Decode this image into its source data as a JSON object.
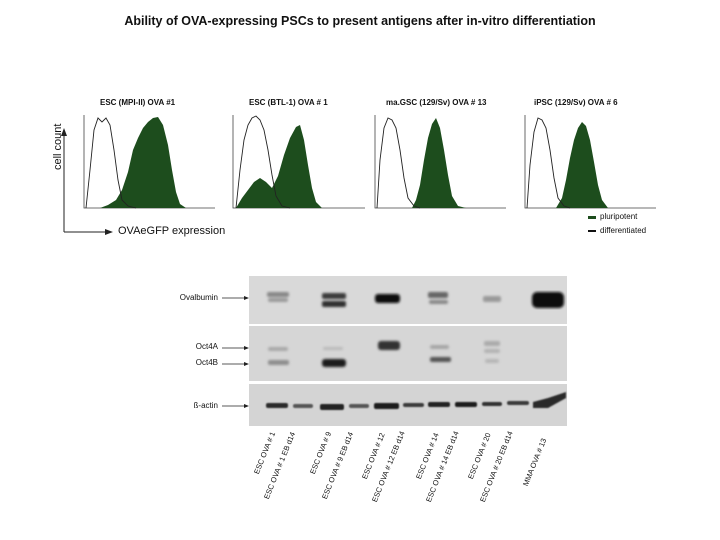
{
  "title": "Ability of OVA-expressing PSCs to present antigens after in-vitro differentiation",
  "histograms": [
    {
      "title": "ESC (MPI-II) OVA #1"
    },
    {
      "title": "ESC (BTL-1) OVA # 1"
    },
    {
      "title": "ma.GSC (129/Sv) OVA # 13"
    },
    {
      "title": "iPSC (129/Sv) OVA # 6"
    }
  ],
  "axes": {
    "y_label": "cell count",
    "x_label": "OVAeGFP expression"
  },
  "legend": [
    {
      "label": "pluripotent",
      "color": "#1d4d1d"
    },
    {
      "label": "differentiated",
      "color": "#111111"
    }
  ],
  "colors": {
    "fill": "#1d4d1d",
    "outline": "#222222",
    "blot_bg": "#d9d9d9"
  },
  "blot": {
    "band_labels": [
      "Ovalbumin",
      "Oct4A",
      "Oct4B",
      "ß-actin"
    ],
    "lanes": [
      "ESC OVA # 1",
      "ESC OVA # 1 EB d14",
      "ESC OVA # 9",
      "ESC OVA # 9 EB d14",
      "ESC OVA # 12",
      "ESC OVA # 12 EB d14",
      "ESC OVA # 14",
      "ESC OVA # 14 EB d14",
      "ESC OVA # 20",
      "ESC OVA # 20 EB d14",
      "MMA OVA # 13"
    ]
  }
}
